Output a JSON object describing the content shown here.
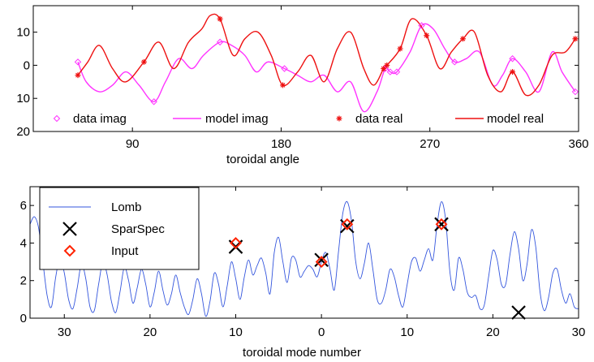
{
  "colors": {
    "magenta": "#ff33ff",
    "red": "#ee1111",
    "lomb": "#3355dd",
    "black": "#000000",
    "input": "#ff2200"
  },
  "chart_data": [
    {
      "type": "line",
      "xlabel": "toroidal angle",
      "ylabel": "",
      "xlim": [
        30,
        360
      ],
      "ylim": [
        -20,
        18
      ],
      "x_ticks": [
        90,
        180,
        270,
        360
      ],
      "y_ticks": [
        10,
        0,
        -10,
        -20
      ],
      "y_tick_labels": [
        "10",
        "0",
        "10",
        "20"
      ],
      "grid": false,
      "legend_position": "bottom",
      "series": [
        {
          "name": "data imag",
          "kind": "scatter",
          "marker": "diamond",
          "color": "#ff33ff",
          "points": [
            [
              57,
              1
            ],
            [
              103,
              -11
            ],
            [
              143,
              7
            ],
            [
              182,
              -1
            ],
            [
              243,
              -1
            ],
            [
              246,
              -2
            ],
            [
              250,
              -2
            ],
            [
              265,
              12
            ],
            [
              285,
              1
            ],
            [
              320,
              2
            ],
            [
              358,
              -8
            ]
          ]
        },
        {
          "name": "model imag",
          "kind": "line",
          "color": "#ff33ff",
          "points": [
            [
              57,
              1
            ],
            [
              62,
              -5
            ],
            [
              70,
              -8
            ],
            [
              78,
              -6
            ],
            [
              86,
              -2
            ],
            [
              94,
              -6
            ],
            [
              103,
              -11
            ],
            [
              110,
              -5
            ],
            [
              118,
              2
            ],
            [
              126,
              -1
            ],
            [
              133,
              3
            ],
            [
              143,
              7
            ],
            [
              150,
              6
            ],
            [
              158,
              3
            ],
            [
              165,
              -2
            ],
            [
              172,
              1
            ],
            [
              182,
              -1
            ],
            [
              190,
              -3
            ],
            [
              198,
              -5
            ],
            [
              206,
              -3
            ],
            [
              214,
              -8
            ],
            [
              222,
              -5
            ],
            [
              230,
              -14
            ],
            [
              238,
              -8
            ],
            [
              243,
              -1
            ],
            [
              246,
              -2
            ],
            [
              250,
              -2
            ],
            [
              258,
              4
            ],
            [
              265,
              12
            ],
            [
              272,
              11
            ],
            [
              279,
              5
            ],
            [
              285,
              1
            ],
            [
              292,
              2
            ],
            [
              300,
              4
            ],
            [
              308,
              -6
            ],
            [
              314,
              -3
            ],
            [
              320,
              2
            ],
            [
              328,
              -2
            ],
            [
              336,
              -8
            ],
            [
              344,
              4
            ],
            [
              350,
              -2
            ],
            [
              358,
              -8
            ]
          ]
        },
        {
          "name": "data real",
          "kind": "scatter",
          "marker": "asterisk",
          "color": "#ee1111",
          "points": [
            [
              57,
              -3
            ],
            [
              97,
              1
            ],
            [
              143,
              14
            ],
            [
              181,
              -6
            ],
            [
              242,
              -1
            ],
            [
              244,
              0
            ],
            [
              252,
              5
            ],
            [
              268,
              9
            ],
            [
              290,
              8
            ],
            [
              320,
              -2
            ],
            [
              358,
              8
            ]
          ]
        },
        {
          "name": "model real",
          "kind": "line",
          "color": "#ee1111",
          "points": [
            [
              57,
              -3
            ],
            [
              63,
              1
            ],
            [
              70,
              6
            ],
            [
              78,
              -1
            ],
            [
              86,
              -5
            ],
            [
              97,
              1
            ],
            [
              106,
              7
            ],
            [
              115,
              -1
            ],
            [
              124,
              7
            ],
            [
              132,
              11
            ],
            [
              137,
              15
            ],
            [
              143,
              14
            ],
            [
              151,
              3
            ],
            [
              158,
              8
            ],
            [
              166,
              10
            ],
            [
              174,
              3
            ],
            [
              181,
              -6
            ],
            [
              190,
              -2
            ],
            [
              198,
              3
            ],
            [
              206,
              -5
            ],
            [
              214,
              5
            ],
            [
              222,
              10
            ],
            [
              230,
              -1
            ],
            [
              236,
              -6
            ],
            [
              242,
              -1
            ],
            [
              244,
              0
            ],
            [
              252,
              5
            ],
            [
              259,
              14
            ],
            [
              268,
              9
            ],
            [
              276,
              -1
            ],
            [
              283,
              4
            ],
            [
              290,
              8
            ],
            [
              297,
              10
            ],
            [
              305,
              -3
            ],
            [
              313,
              -8
            ],
            [
              320,
              -2
            ],
            [
              328,
              -9
            ],
            [
              336,
              -6
            ],
            [
              344,
              3
            ],
            [
              352,
              4
            ],
            [
              358,
              8
            ]
          ]
        }
      ]
    },
    {
      "type": "line",
      "xlabel": "toroidal mode number",
      "ylabel": "",
      "xlim": [
        -34,
        30
      ],
      "ylim": [
        0,
        7
      ],
      "x_ticks": [
        -30,
        -20,
        -10,
        0,
        10,
        20,
        30
      ],
      "x_tick_labels": [
        "30",
        "20",
        "10",
        "0",
        "10",
        "20",
        "30"
      ],
      "y_ticks": [
        0,
        2,
        4,
        6
      ],
      "grid": false,
      "legend_position": "top-left",
      "series": [
        {
          "name": "Lomb",
          "kind": "line",
          "color": "#3355dd",
          "points": [
            [
              -34,
              5
            ],
            [
              -33.5,
              5.4
            ],
            [
              -33,
              4.8
            ],
            [
              -32.5,
              3
            ],
            [
              -32,
              1.2
            ],
            [
              -31.5,
              0.6
            ],
            [
              -31,
              2.2
            ],
            [
              -30.5,
              3.2
            ],
            [
              -30,
              2.4
            ],
            [
              -29.5,
              1
            ],
            [
              -29,
              0.5
            ],
            [
              -28.5,
              1.6
            ],
            [
              -28,
              2.9
            ],
            [
              -27.5,
              2.1
            ],
            [
              -27,
              0.6
            ],
            [
              -26.5,
              0.4
            ],
            [
              -26,
              1.8
            ],
            [
              -25.5,
              3
            ],
            [
              -25,
              2.3
            ],
            [
              -24.5,
              0.9
            ],
            [
              -24,
              0.3
            ],
            [
              -23.5,
              1.4
            ],
            [
              -23,
              2.7
            ],
            [
              -22.5,
              2
            ],
            [
              -22,
              0.8
            ],
            [
              -21.5,
              1.6
            ],
            [
              -21,
              2.6
            ],
            [
              -20.5,
              1.8
            ],
            [
              -20,
              0.6
            ],
            [
              -19.5,
              1.4
            ],
            [
              -19,
              2.5
            ],
            [
              -18.5,
              1.5
            ],
            [
              -18,
              0.7
            ],
            [
              -17.5,
              1.3
            ],
            [
              -17,
              2.3
            ],
            [
              -16.5,
              1.4
            ],
            [
              -16,
              0.6
            ],
            [
              -15.5,
              0.2
            ],
            [
              -15,
              1
            ],
            [
              -14.5,
              2.1
            ],
            [
              -14,
              1.3
            ],
            [
              -13.5,
              0.1
            ],
            [
              -13,
              0.9
            ],
            [
              -12.5,
              2.4
            ],
            [
              -12,
              1.8
            ],
            [
              -11.5,
              0.6
            ],
            [
              -11,
              1.7
            ],
            [
              -10.5,
              3
            ],
            [
              -10,
              2.1
            ],
            [
              -9.5,
              1
            ],
            [
              -9,
              2.2
            ],
            [
              -8.5,
              3.1
            ],
            [
              -8,
              2.3
            ],
            [
              -7.5,
              2.8
            ],
            [
              -7,
              3.2
            ],
            [
              -6.5,
              2.4
            ],
            [
              -6,
              1.3
            ],
            [
              -5.5,
              3.5
            ],
            [
              -5,
              4.3
            ],
            [
              -4.5,
              3
            ],
            [
              -4,
              1.9
            ],
            [
              -3.5,
              3.2
            ],
            [
              -3,
              3.1
            ],
            [
              -2.5,
              2.2
            ],
            [
              -2,
              2.5
            ],
            [
              -1.5,
              2.8
            ],
            [
              -1,
              2.6
            ],
            [
              -0.5,
              2.2
            ],
            [
              0,
              3
            ],
            [
              0.5,
              3.5
            ],
            [
              1,
              2.6
            ],
            [
              1.5,
              1.5
            ],
            [
              2,
              3.6
            ],
            [
              2.5,
              5.6
            ],
            [
              3,
              6.2
            ],
            [
              3.5,
              5.2
            ],
            [
              4,
              3
            ],
            [
              4.5,
              2.1
            ],
            [
              5,
              2.9
            ],
            [
              5.5,
              4
            ],
            [
              6,
              2.6
            ],
            [
              6.5,
              1
            ],
            [
              7,
              0.8
            ],
            [
              7.5,
              1.5
            ],
            [
              8,
              2.6
            ],
            [
              8.5,
              2.2
            ],
            [
              9,
              1.2
            ],
            [
              9.5,
              0.6
            ],
            [
              10,
              1.8
            ],
            [
              10.5,
              3
            ],
            [
              11,
              3.2
            ],
            [
              11.5,
              2.5
            ],
            [
              12,
              3.1
            ],
            [
              12.5,
              3.7
            ],
            [
              13,
              3.1
            ],
            [
              13.5,
              5
            ],
            [
              14,
              6.2
            ],
            [
              14.5,
              5.2
            ],
            [
              15,
              2.4
            ],
            [
              15.5,
              1.5
            ],
            [
              16,
              3.2
            ],
            [
              16.5,
              2.6
            ],
            [
              17,
              1.4
            ],
            [
              17.5,
              1.1
            ],
            [
              18,
              1.2
            ],
            [
              18.5,
              0.5
            ],
            [
              19,
              0.7
            ],
            [
              19.5,
              2.2
            ],
            [
              20,
              3.6
            ],
            [
              20.5,
              3.1
            ],
            [
              21,
              1.8
            ],
            [
              21.5,
              1.8
            ],
            [
              22,
              3.4
            ],
            [
              22.5,
              4.6
            ],
            [
              23,
              3.7
            ],
            [
              23.5,
              2
            ],
            [
              24,
              2.9
            ],
            [
              24.5,
              4.7
            ],
            [
              25,
              3.8
            ],
            [
              25.5,
              1.4
            ],
            [
              26,
              0.4
            ],
            [
              26.5,
              1.1
            ],
            [
              27,
              2.4
            ],
            [
              27.5,
              2.6
            ],
            [
              28,
              1.5
            ],
            [
              28.5,
              0.8
            ],
            [
              29,
              1.3
            ],
            [
              29.5,
              0.6
            ],
            [
              30,
              0.5
            ]
          ]
        },
        {
          "name": "SparSpec",
          "kind": "scatter",
          "marker": "x",
          "color": "#000000",
          "points": [
            [
              -10,
              3.8
            ],
            [
              0,
              3.1
            ],
            [
              3,
              4.9
            ],
            [
              14,
              5.0
            ],
            [
              23,
              0.3
            ]
          ]
        },
        {
          "name": "Input",
          "kind": "scatter",
          "marker": "diamond",
          "color": "#ff2200",
          "points": [
            [
              -10,
              4
            ],
            [
              0,
              3
            ],
            [
              3,
              5
            ],
            [
              14,
              5
            ]
          ]
        }
      ]
    }
  ]
}
